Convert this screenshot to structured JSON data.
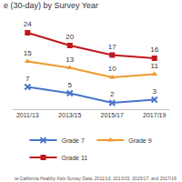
{
  "chart_data": {
    "type": "line",
    "title": "e (30-day) by Survey Year",
    "categories": [
      "2011/13",
      "2013/15",
      "2015/17",
      "2017/19"
    ],
    "series": [
      {
        "name": "Grade 7",
        "color": "#4a74c9",
        "marker": "x",
        "line_style": "solid",
        "values": [
          7,
          5,
          2,
          3
        ]
      },
      {
        "name": "Grade 9",
        "color": "#ee9a2e",
        "marker": "triangle",
        "line_style": "solid",
        "values": [
          15,
          13,
          10,
          11
        ]
      },
      {
        "name": "Grade 11",
        "color": "#c0181c",
        "marker": "square",
        "line_style": "solid",
        "values": [
          24,
          20,
          17,
          16
        ]
      }
    ],
    "ylim": [
      0,
      28
    ],
    "data_labels": true,
    "tick_labels": "x",
    "grid": false,
    "legend": "bottom",
    "annotations": [
      "te California Healthy Kids Survey Data, 2011/13, 2013/15, 2015/17, and 2017/19"
    ]
  }
}
